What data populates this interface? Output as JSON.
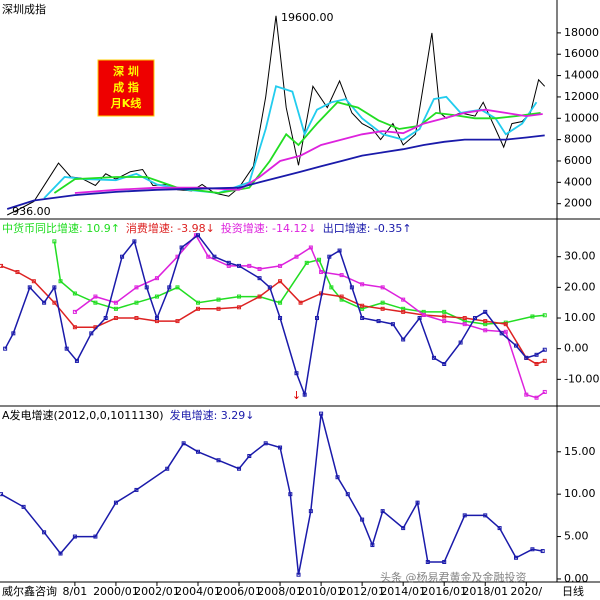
{
  "chart_data": [
    {
      "type": "line",
      "title": "深圳成指",
      "badge": [
        "深 圳",
        "成 指",
        "月K线"
      ],
      "xlim": [
        1994.35,
        2021.4
      ],
      "ylim": [
        565,
        21080
      ],
      "yticks": [
        2000,
        4000,
        6000,
        8000,
        10000,
        12000,
        14000,
        16000,
        18000
      ],
      "annotations": [
        {
          "label": "19600.00",
          "x": 2007.8,
          "y": 19600
        },
        {
          "label": "936.00",
          "x": 1994.7,
          "y": 936
        }
      ],
      "series": [
        {
          "color": "#000000",
          "x": [
            1994.7,
            1995.3,
            1996,
            1996.6,
            1997.2,
            1997.8,
            1998.3,
            1999,
            1999.5,
            2000,
            2000.7,
            2001.3,
            2001.8,
            2002.5,
            2003,
            2003.7,
            2004.2,
            2004.8,
            2005.5,
            2006,
            2006.7,
            2007.3,
            2007.8,
            2008.3,
            2008.9,
            2009.6,
            2010.3,
            2010.9,
            2011.5,
            2012,
            2012.5,
            2012.9,
            2013.5,
            2014,
            2014.6,
            2015.4,
            2015.8,
            2016.1,
            2016.8,
            2017.5,
            2017.9,
            2018.5,
            2018.9,
            2019.3,
            2019.8,
            2020.2,
            2020.6,
            2020.9
          ],
          "values": [
            936,
            1500,
            2200,
            4000,
            5800,
            4500,
            4400,
            3700,
            4800,
            4300,
            5000,
            5200,
            3700,
            3800,
            3300,
            3200,
            3800,
            3000,
            2700,
            3500,
            5500,
            12000,
            19600,
            11000,
            5600,
            13000,
            11000,
            13500,
            10500,
            9500,
            9000,
            8000,
            9500,
            7500,
            8500,
            18000,
            10500,
            10000,
            10500,
            10200,
            11500,
            9000,
            7300,
            9500,
            9700,
            10500,
            13600,
            13000
          ]
        },
        {
          "color": "#22ccee",
          "x": [
            1996.5,
            1997.5,
            1998.5,
            2000,
            2001,
            2002,
            2003.5,
            2005,
            2006.5,
            2007.3,
            2007.8,
            2008.6,
            2009.2,
            2009.8,
            2010.5,
            2011.2,
            2012,
            2013,
            2014,
            2014.8,
            2015.5,
            2016.1,
            2016.8,
            2017.8,
            2018.5,
            2019,
            2019.8,
            2020.5
          ],
          "values": [
            2500,
            4500,
            4300,
            4200,
            4800,
            3800,
            3300,
            3000,
            4000,
            9000,
            13000,
            12500,
            8500,
            10800,
            11500,
            11800,
            10000,
            8500,
            8000,
            9000,
            11800,
            12000,
            10500,
            10800,
            10000,
            8500,
            9500,
            11500
          ]
        },
        {
          "color": "#22dd22",
          "x": [
            1997,
            1998,
            2000,
            2001.5,
            2003,
            2005,
            2006.5,
            2007.5,
            2008.3,
            2008.9,
            2009.8,
            2010.8,
            2011.8,
            2012.8,
            2013.8,
            2014.8,
            2015.6,
            2016.5,
            2017.5,
            2018.5,
            2019.5,
            2020.7
          ],
          "values": [
            3000,
            4300,
            4500,
            4500,
            3500,
            3000,
            3500,
            6000,
            8500,
            7500,
            9500,
            11500,
            11000,
            9800,
            9000,
            9300,
            10500,
            10300,
            10000,
            10000,
            10200,
            10500
          ]
        },
        {
          "color": "#dd22dd",
          "x": [
            1998,
            2000,
            2002,
            2004,
            2006,
            2007,
            2008,
            2009,
            2010,
            2011,
            2012,
            2013,
            2014,
            2015,
            2016,
            2017,
            2018,
            2019,
            2020,
            2020.8
          ],
          "values": [
            3000,
            3300,
            3500,
            3500,
            3300,
            4500,
            6000,
            6500,
            7500,
            8000,
            8500,
            8800,
            8600,
            9500,
            10000,
            10500,
            10800,
            10500,
            10200,
            10400
          ]
        },
        {
          "color": "#1a1aaa",
          "x": [
            1994.7,
            1996,
            1998,
            2000,
            2002,
            2004,
            2006,
            2007,
            2008,
            2009,
            2010,
            2011,
            2012,
            2013,
            2014,
            2015,
            2016,
            2017,
            2018,
            2019,
            2020,
            2020.9
          ],
          "values": [
            1500,
            2300,
            2800,
            3100,
            3300,
            3400,
            3500,
            4000,
            4500,
            5000,
            5500,
            6000,
            6500,
            6800,
            7100,
            7500,
            7800,
            8000,
            8000,
            8000,
            8200,
            8400
          ]
        }
      ]
    },
    {
      "type": "line",
      "markers": true,
      "xlim": [
        1994.35,
        2021.4
      ],
      "ylim": [
        -18.7,
        42.3
      ],
      "yticks": [
        {
          "value": -10,
          "label": "-10.00"
        },
        {
          "value": 0,
          "label": "0.00"
        },
        {
          "value": 10,
          "label": "10.00"
        },
        {
          "value": 20,
          "label": "20.00"
        },
        {
          "value": 30,
          "label": "30.00"
        }
      ],
      "series": [
        {
          "name": "中货币同比增速: 10.9↑",
          "color": "#22dd22",
          "x": [
            1997,
            1997.3,
            1998,
            1999,
            2000,
            2001,
            2002,
            2003,
            2004,
            2005,
            2006,
            2007,
            2008,
            2009.3,
            2009.9,
            2010.5,
            2011,
            2012,
            2013,
            2014,
            2015,
            2016,
            2017,
            2018,
            2019,
            2020.3,
            2020.9
          ],
          "values": [
            35,
            22,
            18,
            15,
            13,
            15,
            17,
            20,
            15,
            16,
            17,
            17,
            15,
            28,
            29,
            20,
            16,
            13,
            15,
            13,
            12,
            12,
            9,
            8,
            8.5,
            10.5,
            10.9
          ]
        },
        {
          "name": "消费增速: -3.98↓",
          "color": "#dd2222",
          "x": [
            1994.4,
            1995.2,
            1996,
            1997,
            1998,
            1999,
            2000,
            2001,
            2002,
            2003,
            2004,
            2005,
            2006,
            2007,
            2008,
            2009,
            2010,
            2011,
            2012,
            2013,
            2014,
            2015,
            2016,
            2017,
            2018,
            2019,
            2020,
            2020.5,
            2020.9
          ],
          "values": [
            27,
            25,
            22,
            15,
            7,
            7,
            10,
            10,
            9,
            9,
            13,
            13,
            13.5,
            17,
            22,
            15,
            18,
            17,
            14,
            13,
            12,
            11,
            10.5,
            10,
            9,
            8,
            -3,
            -5,
            -3.98
          ]
        },
        {
          "name": "投资增速: -14.12↓",
          "color": "#dd22dd",
          "x": [
            1998,
            1999,
            2000,
            2001,
            2002,
            2003,
            2003.9,
            2004.5,
            2005.5,
            2006.5,
            2007,
            2008,
            2008.8,
            2009.5,
            2010,
            2011,
            2012,
            2013,
            2014,
            2015,
            2016,
            2017,
            2018,
            2019,
            2020,
            2020.5,
            2020.9
          ],
          "values": [
            12,
            17,
            15,
            20,
            23,
            30,
            37,
            30,
            27,
            27,
            26,
            27,
            30,
            33,
            25,
            24,
            21,
            20,
            16,
            11,
            9,
            8,
            6,
            5.5,
            -15,
            -16,
            -14.12
          ]
        },
        {
          "name": "出口增速: -0.35↑",
          "color": "#1a1aaa",
          "x": [
            1994.6,
            1995,
            1995.8,
            1996.5,
            1997,
            1997.6,
            1998.1,
            1998.8,
            1999.5,
            2000.3,
            2000.9,
            2001.5,
            2002,
            2002.6,
            2003.2,
            2004,
            2004.8,
            2005.5,
            2006,
            2007,
            2007.5,
            2008,
            2008.8,
            2009.2,
            2009.8,
            2010.4,
            2010.9,
            2011.5,
            2012,
            2012.8,
            2013.5,
            2014,
            2014.8,
            2015.5,
            2016,
            2016.8,
            2017.5,
            2018,
            2018.8,
            2019.5,
            2020,
            2020.5,
            2020.9
          ],
          "values": [
            0,
            5,
            20,
            15,
            20,
            0,
            -4,
            5,
            10,
            30,
            35,
            20,
            10,
            20,
            33,
            37,
            30,
            28,
            27,
            23,
            20,
            10,
            -8,
            -15,
            10,
            30,
            32,
            20,
            10,
            9,
            8,
            3,
            10,
            -3,
            -5,
            2,
            10,
            12,
            5,
            1,
            -3,
            -2,
            -0.35
          ]
        }
      ]
    },
    {
      "type": "line",
      "markers": true,
      "subtitle": "A发电增速(2012,0,0,1011130)",
      "xlim": [
        1994.35,
        2021.4
      ],
      "ylim": [
        -0.36,
        20.4
      ],
      "yticks": [
        {
          "value": 0,
          "label": "0.00"
        },
        {
          "value": 5,
          "label": "5.00"
        },
        {
          "value": 10,
          "label": "10.00"
        },
        {
          "value": 15,
          "label": "15.00"
        }
      ],
      "xticks": [
        {
          "value": 1998,
          "label": "8/01"
        },
        {
          "value": 2000,
          "label": "2000/01"
        },
        {
          "value": 2002,
          "label": "2002/01"
        },
        {
          "value": 2004,
          "label": "2004/01"
        },
        {
          "value": 2006,
          "label": "2006/01"
        },
        {
          "value": 2008,
          "label": "2008/01"
        },
        {
          "value": 2010,
          "label": "2010/01"
        },
        {
          "value": 2012,
          "label": "2012/01"
        },
        {
          "value": 2014,
          "label": "2014/01"
        },
        {
          "value": 2016,
          "label": "2016/01"
        },
        {
          "value": 2018,
          "label": "2018/01"
        },
        {
          "value": 2020,
          "label": "2020/"
        }
      ],
      "annotations": [
        {
          "label": "↓",
          "x": 2008.8
        }
      ],
      "footer": "威尔鑫咨询",
      "period": "日线",
      "watermark": "头条 @杨易君黄金及金融投资",
      "series": [
        {
          "name": "发电增速: 3.29↓",
          "color": "#1a1aaa",
          "x": [
            1994.4,
            1995.5,
            1996.5,
            1997.3,
            1998,
            1999,
            2000,
            2001,
            2002.5,
            2003.3,
            2004,
            2005,
            2006,
            2006.5,
            2007.3,
            2008,
            2008.5,
            2008.9,
            2009.5,
            2010,
            2010.8,
            2011.3,
            2012,
            2012.5,
            2013,
            2014,
            2014.7,
            2015.2,
            2016,
            2017,
            2018,
            2018.7,
            2019.5,
            2020.3,
            2020.8
          ],
          "values": [
            10,
            8.5,
            5.5,
            3,
            5,
            5,
            9,
            10.5,
            13,
            16,
            15,
            14,
            13,
            14.5,
            16,
            15.5,
            10,
            0.5,
            8,
            19.5,
            12,
            10,
            7,
            4,
            8,
            6,
            9,
            2,
            2,
            7.5,
            7.5,
            6,
            2.5,
            3.5,
            3.29
          ]
        }
      ]
    }
  ]
}
